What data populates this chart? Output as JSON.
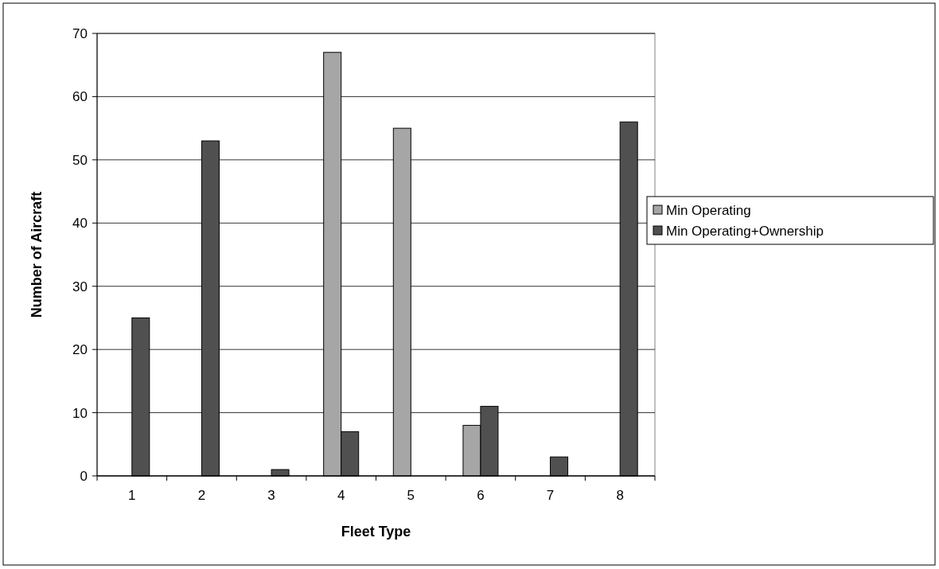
{
  "chart_data": {
    "type": "bar",
    "xlabel": "Fleet Type",
    "ylabel": "Number of Aircraft",
    "categories": [
      "1",
      "2",
      "3",
      "4",
      "5",
      "6",
      "7",
      "8"
    ],
    "series": [
      {
        "name": "Min Operating",
        "color": "#a6a6a6",
        "values": [
          0,
          0,
          0,
          67,
          55,
          8,
          0,
          0
        ]
      },
      {
        "name": "Min Operating+Ownership",
        "color": "#505050",
        "values": [
          25,
          53,
          1,
          7,
          0,
          11,
          3,
          56
        ]
      }
    ],
    "ylim": [
      0,
      70
    ],
    "yticks": [
      0,
      10,
      20,
      30,
      40,
      50,
      60,
      70
    ],
    "grid": "y",
    "legend": "right"
  }
}
